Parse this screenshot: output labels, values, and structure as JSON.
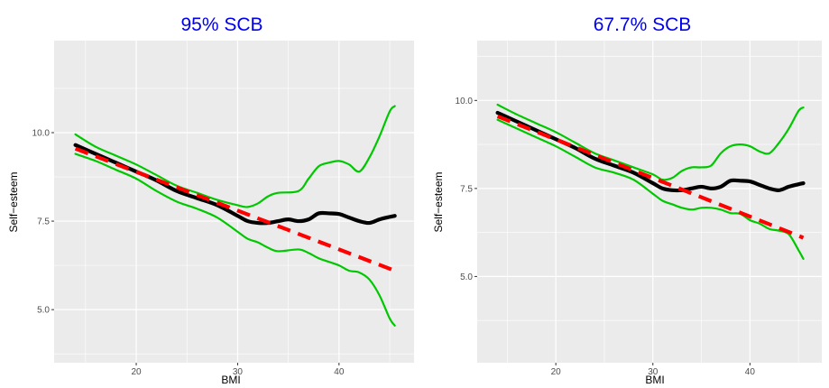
{
  "colors": {
    "panel_background": "#ebebeb",
    "grid": "#ffffff",
    "title": "#0000ee",
    "band": "#00c800",
    "estimate": "#000000",
    "linear_fit": "#ff0000"
  },
  "chart_data": [
    {
      "type": "line",
      "title": "95% SCB",
      "xlabel": "BMI",
      "ylabel": "Self−esteem",
      "xlim": [
        11.9,
        47.4
      ],
      "ylim": [
        3.5,
        12.6
      ],
      "xticks": [
        20,
        30,
        40
      ],
      "xtick_labels": [
        "20",
        "30",
        "40"
      ],
      "yticks": [
        5.0,
        7.5,
        10.0
      ],
      "ytick_labels": [
        "5.0",
        "7.5",
        "10.0"
      ],
      "grid": true,
      "series": [
        {
          "role": "upper_band",
          "x": [
            14.0,
            16.0,
            18.0,
            20.0,
            22.0,
            24.0,
            26.0,
            28.0,
            30.0,
            31.0,
            32.0,
            33.0,
            34.0,
            36.0,
            37.0,
            38.0,
            39.0,
            40.0,
            41.0,
            42.0,
            43.0,
            44.0,
            45.0,
            45.5
          ],
          "y": [
            9.95,
            9.6,
            9.35,
            9.1,
            8.8,
            8.5,
            8.3,
            8.1,
            7.95,
            7.9,
            8.0,
            8.2,
            8.3,
            8.35,
            8.7,
            9.05,
            9.15,
            9.2,
            9.1,
            8.9,
            9.3,
            9.9,
            10.6,
            10.75
          ]
        },
        {
          "role": "estimate",
          "x": [
            14.0,
            16.0,
            18.0,
            20.0,
            22.0,
            24.0,
            26.0,
            28.0,
            30.0,
            31.0,
            32.0,
            33.0,
            34.0,
            35.0,
            36.0,
            37.0,
            38.0,
            39.0,
            40.0,
            41.0,
            42.0,
            43.0,
            44.0,
            45.0,
            45.5
          ],
          "y": [
            9.65,
            9.4,
            9.15,
            8.9,
            8.65,
            8.35,
            8.15,
            7.95,
            7.65,
            7.5,
            7.45,
            7.45,
            7.5,
            7.55,
            7.5,
            7.55,
            7.72,
            7.72,
            7.7,
            7.6,
            7.5,
            7.45,
            7.55,
            7.62,
            7.65
          ]
        },
        {
          "role": "lower_band",
          "x": [
            14.0,
            16.0,
            18.0,
            20.0,
            22.0,
            24.0,
            26.0,
            28.0,
            30.0,
            31.0,
            32.0,
            33.0,
            34.0,
            36.0,
            37.0,
            38.0,
            39.0,
            40.0,
            41.0,
            42.0,
            43.0,
            44.0,
            45.0,
            45.5
          ],
          "y": [
            9.4,
            9.2,
            8.95,
            8.7,
            8.35,
            8.05,
            7.85,
            7.6,
            7.2,
            7.0,
            6.9,
            6.75,
            6.65,
            6.7,
            6.6,
            6.45,
            6.35,
            6.25,
            6.1,
            6.05,
            5.85,
            5.4,
            4.75,
            4.55
          ]
        },
        {
          "role": "linear_fit",
          "x": [
            14.0,
            45.5
          ],
          "y": [
            9.55,
            6.1
          ]
        }
      ]
    },
    {
      "type": "line",
      "title": "67.7% SCB",
      "xlabel": "BMI",
      "ylabel": "Self−esteem",
      "xlim": [
        11.9,
        47.4
      ],
      "ylim": [
        2.55,
        11.7
      ],
      "xticks": [
        20,
        30,
        40
      ],
      "xtick_labels": [
        "20",
        "30",
        "40"
      ],
      "yticks": [
        5.0,
        7.5,
        10.0
      ],
      "ytick_labels": [
        "5.0",
        "7.5",
        "10.0"
      ],
      "grid": true,
      "series": [
        {
          "role": "upper_band",
          "x": [
            14.0,
            16.0,
            18.0,
            20.0,
            22.0,
            24.0,
            26.0,
            28.0,
            30.0,
            31.0,
            32.0,
            33.0,
            34.0,
            35.0,
            36.0,
            37.0,
            38.0,
            39.0,
            40.0,
            41.0,
            42.0,
            43.0,
            44.0,
            45.0,
            45.5
          ],
          "y": [
            9.88,
            9.6,
            9.35,
            9.1,
            8.8,
            8.5,
            8.3,
            8.1,
            7.9,
            7.75,
            7.8,
            8.0,
            8.1,
            8.1,
            8.15,
            8.5,
            8.7,
            8.75,
            8.7,
            8.55,
            8.5,
            8.8,
            9.2,
            9.7,
            9.8
          ]
        },
        {
          "role": "estimate",
          "x": [
            14.0,
            16.0,
            18.0,
            20.0,
            22.0,
            24.0,
            26.0,
            28.0,
            30.0,
            31.0,
            32.0,
            33.0,
            34.0,
            35.0,
            36.0,
            37.0,
            38.0,
            39.0,
            40.0,
            41.0,
            42.0,
            43.0,
            44.0,
            45.0,
            45.5
          ],
          "y": [
            9.65,
            9.4,
            9.15,
            8.9,
            8.65,
            8.35,
            8.15,
            7.95,
            7.65,
            7.5,
            7.45,
            7.45,
            7.5,
            7.55,
            7.5,
            7.55,
            7.72,
            7.72,
            7.7,
            7.6,
            7.5,
            7.45,
            7.55,
            7.62,
            7.65
          ]
        },
        {
          "role": "lower_band",
          "x": [
            14.0,
            16.0,
            18.0,
            20.0,
            22.0,
            24.0,
            26.0,
            28.0,
            30.0,
            31.0,
            32.0,
            33.0,
            34.0,
            35.0,
            36.0,
            37.0,
            38.0,
            39.0,
            40.0,
            41.0,
            42.0,
            43.0,
            44.0,
            45.0,
            45.5
          ],
          "y": [
            9.45,
            9.2,
            8.95,
            8.7,
            8.4,
            8.1,
            7.95,
            7.75,
            7.35,
            7.15,
            7.05,
            6.95,
            6.9,
            6.95,
            6.95,
            6.9,
            6.8,
            6.78,
            6.6,
            6.5,
            6.35,
            6.3,
            6.2,
            5.75,
            5.5
          ]
        },
        {
          "role": "linear_fit",
          "x": [
            14.0,
            45.5
          ],
          "y": [
            9.55,
            6.1
          ]
        }
      ]
    }
  ]
}
